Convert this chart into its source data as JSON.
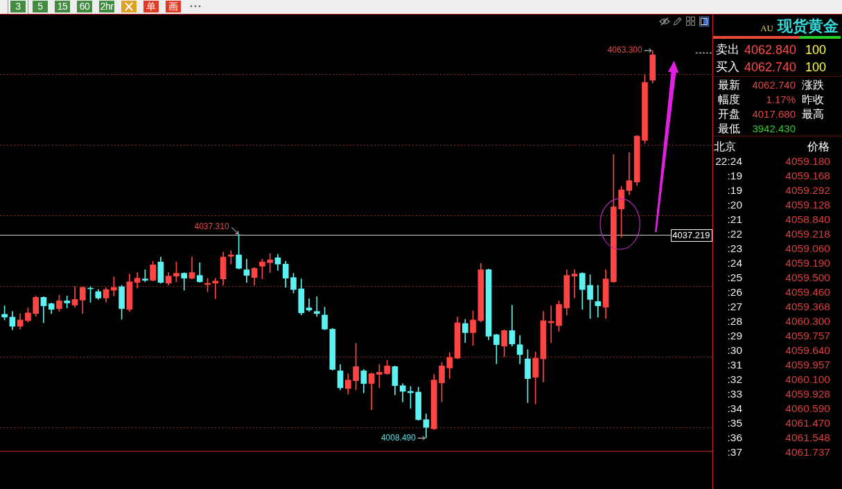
{
  "chart_data": [
    {
      "type": "other",
      "annotations": [
        "3",
        "5",
        "15",
        "60",
        "2hr",
        "单",
        "画"
      ]
    },
    {
      "type": "candlestick",
      "categories": [
        null,
        null,
        null,
        null,
        null,
        null,
        null,
        null,
        null,
        null,
        null,
        null,
        null,
        null,
        null,
        null,
        null,
        null,
        null,
        null,
        null,
        null,
        null,
        null,
        null,
        null,
        null,
        null,
        null,
        null,
        null,
        null,
        null,
        null,
        null,
        null,
        null,
        null,
        null,
        null,
        null,
        null,
        null,
        null,
        null,
        null,
        null,
        null,
        null,
        null,
        null,
        null,
        null,
        null,
        null,
        null,
        null,
        null,
        null,
        null,
        null,
        null,
        null,
        null,
        null,
        null,
        null,
        null,
        null,
        null,
        null,
        null,
        null,
        null,
        null,
        null,
        null,
        null,
        null,
        null,
        null,
        null,
        null,
        null
      ],
      "ohlc": [
        [
          4026.0,
          4027.2,
          4025.2,
          4025.6
        ],
        [
          4025.6,
          4026.4,
          4023.8,
          4024.3
        ],
        [
          4024.3,
          4026.1,
          4023.9,
          4025.2
        ],
        [
          4025.1,
          4026.9,
          4024.9,
          4026.2
        ],
        [
          4026.1,
          4028.6,
          4025.7,
          4028.4
        ],
        [
          4028.4,
          4028.5,
          4024.8,
          4027.2
        ],
        [
          4027.5,
          4027.6,
          4026.1,
          4026.7
        ],
        [
          4026.8,
          4028.7,
          4026.4,
          4027.9
        ],
        [
          4027.9,
          4028.6,
          4026.9,
          4027.6
        ],
        [
          4027.3,
          4029.9,
          4027.0,
          4028.1
        ],
        [
          4028.0,
          4029.9,
          4026.1,
          4029.8
        ],
        [
          4029.7,
          4029.9,
          4027.7,
          4029.6
        ],
        [
          4029.2,
          4029.5,
          4028.1,
          4028.3
        ],
        [
          4028.3,
          4029.8,
          4027.7,
          4029.5
        ],
        [
          4029.4,
          4031.3,
          4028.6,
          4029.8
        ],
        [
          4029.9,
          4030.1,
          4025.3,
          4026.8
        ],
        [
          4026.7,
          4031.7,
          4026.4,
          4030.6
        ],
        [
          4030.5,
          4031.9,
          4029.7,
          4031.1
        ],
        [
          4031.0,
          4032.3,
          4030.6,
          4030.8
        ],
        [
          4030.8,
          4033.5,
          4030.7,
          4033.0
        ],
        [
          4033.4,
          4034.1,
          4030.4,
          4030.5
        ],
        [
          4030.4,
          4031.9,
          4030.1,
          4031.4
        ],
        [
          4031.4,
          4033.4,
          4030.6,
          4031.8
        ],
        [
          4031.8,
          4031.9,
          4029.4,
          4031.1
        ],
        [
          4031.1,
          4034.1,
          4031.0,
          4031.9
        ],
        [
          4031.5,
          4033.3,
          4030.5,
          4030.6
        ],
        [
          4030.2,
          4031.1,
          4029.2,
          4030.4
        ],
        [
          4030.4,
          4031.1,
          4028.2,
          4030.7
        ],
        [
          4031.0,
          4034.8,
          4030.1,
          4034.1
        ],
        [
          4034.2,
          4035.0,
          4033.1,
          4034.4
        ],
        [
          4034.4,
          4037.31,
          4032.4,
          4032.5
        ],
        [
          4032.3,
          4033.8,
          4030.5,
          4031.5
        ],
        [
          4031.2,
          4032.6,
          4030.1,
          4032.5
        ],
        [
          4032.8,
          4033.8,
          4031.0,
          4033.4
        ],
        [
          4033.3,
          4034.6,
          4031.9,
          4033.7
        ],
        [
          4034.0,
          4034.5,
          4032.2,
          4033.1
        ],
        [
          4033.1,
          4033.5,
          4029.8,
          4031.1
        ],
        [
          4031.2,
          4031.8,
          4029.0,
          4029.5
        ],
        [
          4029.6,
          4031.0,
          4025.9,
          4026.2
        ],
        [
          4026.9,
          4028.2,
          4026.4,
          4026.6
        ],
        [
          4026.4,
          4028.5,
          4025.7,
          4026.1
        ],
        [
          4025.9,
          4027.0,
          4023.8,
          4023.9
        ],
        [
          4023.9,
          4024.0,
          4018.1,
          4018.2
        ],
        [
          4018.0,
          4018.9,
          4015.3,
          4015.6
        ],
        [
          4015.5,
          4017.6,
          4014.7,
          4016.7
        ],
        [
          4016.6,
          4021.9,
          4015.3,
          4018.6
        ],
        [
          4018.0,
          4018.2,
          4014.9,
          4016.2
        ],
        [
          4016.2,
          4017.7,
          4012.5,
          4017.6
        ],
        [
          4017.5,
          4018.9,
          4015.6,
          4017.8
        ],
        [
          4017.6,
          4019.5,
          4017.5,
          4018.7
        ],
        [
          4018.6,
          4018.7,
          4014.6,
          4015.9
        ],
        [
          4015.9,
          4016.2,
          4013.6,
          4015.1
        ],
        [
          4015.1,
          4015.8,
          4012.7,
          4014.9
        ],
        [
          4015.0,
          4015.7,
          4011.0,
          4011.1
        ],
        [
          4011.1,
          4011.9,
          4008.49,
          4010.0
        ],
        [
          4009.8,
          4017.5,
          4009.7,
          4016.7
        ],
        [
          4016.3,
          4019.2,
          4013.6,
          4018.7
        ],
        [
          4018.4,
          4020.6,
          4016.9,
          4019.9
        ],
        [
          4019.8,
          4025.6,
          4019.7,
          4024.8
        ],
        [
          4024.7,
          4025.3,
          4022.0,
          4023.4
        ],
        [
          4023.4,
          4026.5,
          4021.6,
          4025.2
        ],
        [
          4025.1,
          4033.2,
          4024.9,
          4032.3
        ],
        [
          4032.3,
          4032.4,
          4022.4,
          4022.9
        ],
        [
          4023.1,
          4023.2,
          4019.0,
          4021.7
        ],
        [
          4021.5,
          4023.8,
          4020.0,
          4023.7
        ],
        [
          4023.7,
          4027.3,
          4021.5,
          4021.8
        ],
        [
          4021.7,
          4023.0,
          4019.0,
          4020.3
        ],
        [
          4019.7,
          4021.0,
          4013.5,
          4016.9
        ],
        [
          4017.1,
          4020.7,
          4013.3,
          4019.8
        ],
        [
          4019.7,
          4026.4,
          4016.4,
          4025.1
        ],
        [
          4024.8,
          4027.2,
          4022.0,
          4025.0
        ],
        [
          4024.4,
          4027.9,
          4023.6,
          4027.4
        ],
        [
          4026.9,
          4032.3,
          4025.9,
          4031.5
        ],
        [
          4031.4,
          4032.3,
          4028.3,
          4031.7
        ],
        [
          4031.8,
          4031.9,
          4026.7,
          4029.5
        ],
        [
          4030.1,
          4031.6,
          4025.4,
          4028.1
        ],
        [
          4027.8,
          4030.1,
          4025.6,
          4027.2
        ],
        [
          4027.0,
          4032.3,
          4025.4,
          4031.0
        ],
        [
          4030.6,
          4048.6,
          4030.5,
          4041.2
        ],
        [
          4040.9,
          4044.1,
          4036.9,
          4043.6
        ],
        [
          4043.5,
          4048.9,
          4042.9,
          4044.9
        ],
        [
          4044.7,
          4051.3,
          4044.2,
          4051.2
        ],
        [
          4050.6,
          4059.9,
          4050.2,
          4058.8
        ],
        [
          4059.1,
          4063.3,
          4058.7,
          4062.7
        ]
      ],
      "colors": [
        "#5df2f2",
        "#5df2f2",
        "#ff4444",
        "#ff4444",
        "#ff4444",
        "#5df2f2",
        "#5df2f2",
        "#ff4444",
        "#5df2f2",
        "#ff4444",
        "#ff4444",
        "#5df2f2",
        "#5df2f2",
        "#ff4444",
        "#ff4444",
        "#5df2f2",
        "#ff4444",
        "#ff4444",
        "#5df2f2",
        "#ff4444",
        "#5df2f2",
        "#ff4444",
        "#ff4444",
        "#5df2f2",
        "#ff4444",
        "#5df2f2",
        "#ff4444",
        "#ff4444",
        "#ff4444",
        "#ff4444",
        "#5df2f2",
        "#5df2f2",
        "#ff4444",
        "#ff4444",
        "#ff4444",
        "#5df2f2",
        "#5df2f2",
        "#5df2f2",
        "#5df2f2",
        "#5df2f2",
        "#5df2f2",
        "#5df2f2",
        "#5df2f2",
        "#5df2f2",
        "#ff4444",
        "#ff4444",
        "#5df2f2",
        "#ff4444",
        "#ff4444",
        "#ff4444",
        "#5df2f2",
        "#5df2f2",
        "#5df2f2",
        "#5df2f2",
        "#5df2f2",
        "#ff4444",
        "#ff4444",
        "#ff4444",
        "#ff4444",
        "#5df2f2",
        "#ff4444",
        "#ff4444",
        "#5df2f2",
        "#5df2f2",
        "#ff4444",
        "#5df2f2",
        "#5df2f2",
        "#5df2f2",
        "#ff4444",
        "#ff4444",
        "#ff4444",
        "#ff4444",
        "#ff4444",
        "#ff4444",
        "#5df2f2",
        "#5df2f2",
        "#5df2f2",
        "#ff4444",
        "#ff4444",
        "#ff4444",
        "#ff4444",
        "#ff4444",
        "#ff4444",
        "#ff4444"
      ],
      "yticks": [
        {
          "value": 4010,
          "label": null
        },
        {
          "value": 4020,
          "label": null
        },
        {
          "value": 4030,
          "label": null
        },
        {
          "value": 4040,
          "label": null
        },
        {
          "value": 4050,
          "label": null
        },
        {
          "value": 4060,
          "label": null
        }
      ],
      "grid": "y",
      "tick_labels": false,
      "ref_lines": [
        {
          "axis": "y",
          "value": 4037.219,
          "label": "4037.219",
          "color": "#cfcfcf"
        }
      ],
      "annotations": [
        "4063.300",
        {
          "text": "4037.310",
          "y": 4037.31
        },
        "4008.490"
      ]
    },
    {
      "type": "other",
      "title": "现货黄金",
      "subtitle": "AU",
      "annotations": [
        "卖出",
        "4062.840",
        "100",
        "买入",
        "4062.740",
        "100",
        "最新",
        "4062.740",
        "涨跌",
        "幅度",
        "1.17%",
        "昨收",
        "开盘",
        "4017.680",
        "最高",
        "最低",
        "3942.430"
      ],
      "colors": [
        "#ff4a4a",
        "#ff4a4a",
        "#e04646",
        "#e04646",
        "#e04646",
        "#34c834"
      ]
    },
    {
      "type": "other",
      "annotations": [
        "北京",
        "价格",
        "22:24 4059.180",
        ":19 4059.168",
        ":19 4059.292",
        ":20 4059.128",
        ":21 4058.840",
        ":22 4059.218",
        ":23 4059.060",
        ":24 4059.190",
        ":25 4059.500",
        ":26 4059.460",
        ":27 4059.368",
        ":28 4060.300",
        ":29 4059.757",
        ":30 4059.640",
        ":31 4059.957",
        ":32 4060.100",
        ":33 4059.928",
        ":34 4060.590",
        ":35 4061.470",
        ":36 4061.548",
        ":37 4061.737"
      ],
      "color": "#de4040"
    }
  ]
}
